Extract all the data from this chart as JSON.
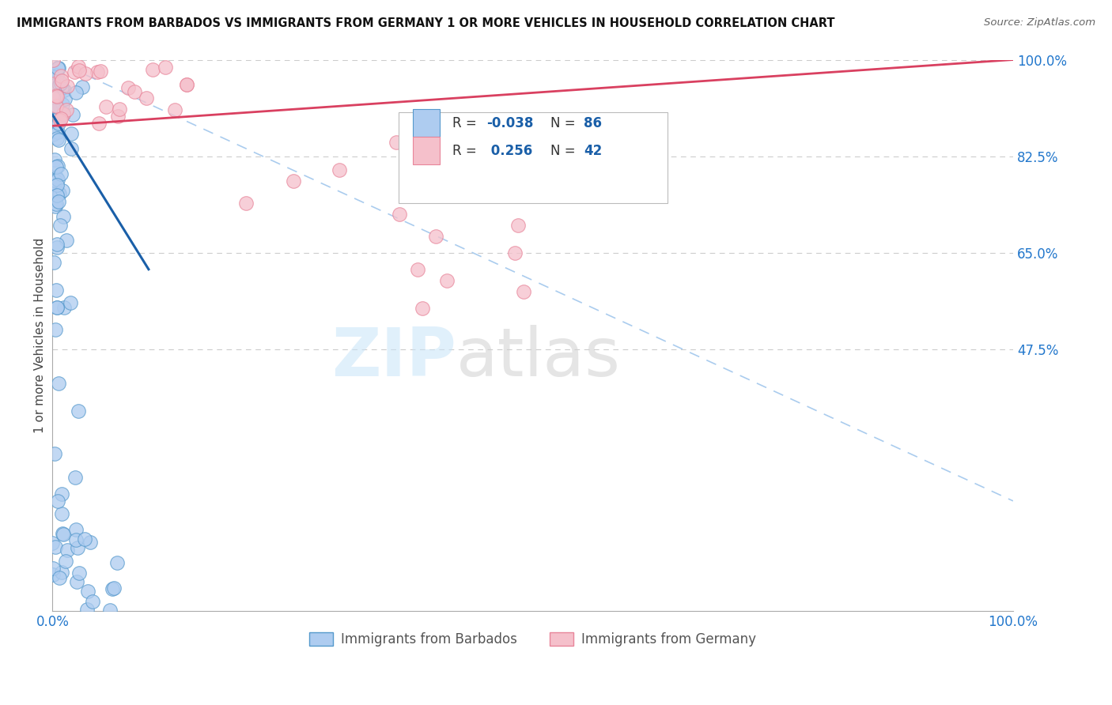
{
  "title": "IMMIGRANTS FROM BARBADOS VS IMMIGRANTS FROM GERMANY 1 OR MORE VEHICLES IN HOUSEHOLD CORRELATION CHART",
  "source": "Source: ZipAtlas.com",
  "ylabel": "1 or more Vehicles in Household",
  "xlim": [
    0,
    100
  ],
  "ylim": [
    0,
    100
  ],
  "xticklabels": [
    "0.0%",
    "100.0%"
  ],
  "ytick_vals": [
    47.5,
    65.0,
    82.5,
    100.0
  ],
  "yticklabels": [
    "47.5%",
    "65.0%",
    "82.5%",
    "100.0%"
  ],
  "barbados_color": "#aeccf0",
  "barbados_edge": "#5599cc",
  "germany_color": "#f5c0cb",
  "germany_edge": "#e8859a",
  "trend_barbados_color": "#1a5fa8",
  "trend_germany_color": "#d94060",
  "diagonal_color": "#aaccee",
  "R_barbados": -0.038,
  "N_barbados": 86,
  "R_germany": 0.256,
  "N_germany": 42,
  "legend_label_barbados": "Immigrants from Barbados",
  "legend_label_germany": "Immigrants from Germany",
  "background_color": "#ffffff",
  "tick_color": "#2277cc",
  "seed": 7
}
